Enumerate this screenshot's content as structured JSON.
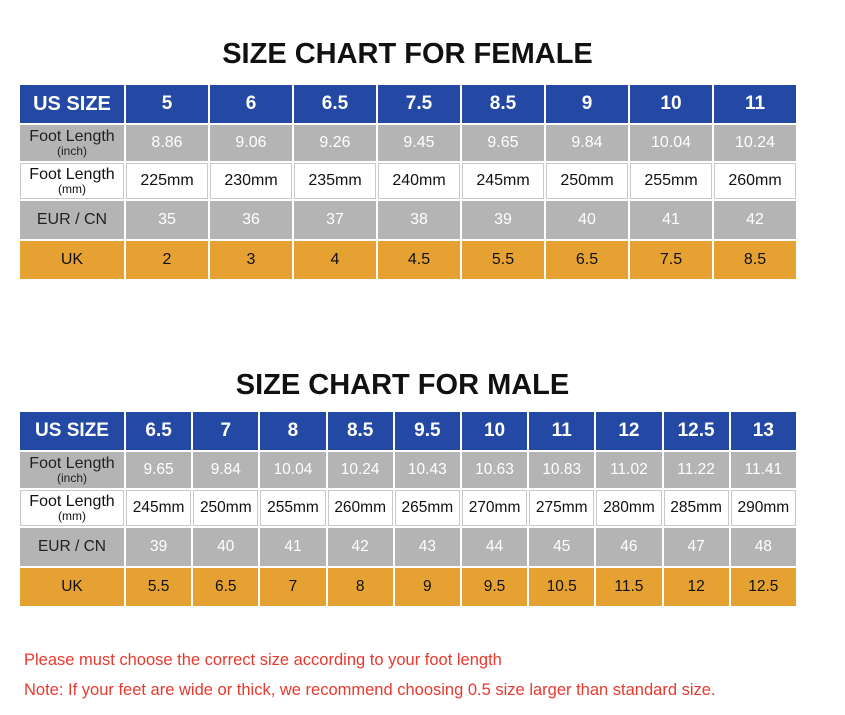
{
  "female": {
    "title": "SIZE CHART FOR FEMALE",
    "labels": {
      "us": "US SIZE",
      "foot_inch_main": "Foot Length",
      "foot_inch_sub": "(inch)",
      "foot_mm_main": "Foot Length",
      "foot_mm_sub": "(mm)",
      "eur": "EUR / CN",
      "uk": "UK"
    },
    "us": [
      "5",
      "6",
      "6.5",
      "7.5",
      "8.5",
      "9",
      "10",
      "11"
    ],
    "inch": [
      "8.86",
      "9.06",
      "9.26",
      "9.45",
      "9.65",
      "9.84",
      "10.04",
      "10.24"
    ],
    "mm": [
      "225mm",
      "230mm",
      "235mm",
      "240mm",
      "245mm",
      "250mm",
      "255mm",
      "260mm"
    ],
    "eur": [
      "35",
      "36",
      "37",
      "38",
      "39",
      "40",
      "41",
      "42"
    ],
    "uk": [
      "2",
      "3",
      "4",
      "4.5",
      "5.5",
      "6.5",
      "7.5",
      "8.5"
    ]
  },
  "male": {
    "title": "SIZE CHART FOR MALE",
    "labels": {
      "us": "US SIZE",
      "foot_inch_main": "Foot Length",
      "foot_inch_sub": "(inch)",
      "foot_mm_main": "Foot Length",
      "foot_mm_sub": "(mm)",
      "eur": "EUR / CN",
      "uk": "UK"
    },
    "us": [
      "6.5",
      "7",
      "8",
      "8.5",
      "9.5",
      "10",
      "11",
      "12",
      "12.5",
      "13"
    ],
    "inch": [
      "9.65",
      "9.84",
      "10.04",
      "10.24",
      "10.43",
      "10.63",
      "10.83",
      "11.02",
      "11.22",
      "11.41"
    ],
    "mm": [
      "245mm",
      "250mm",
      "255mm",
      "260mm",
      "265mm",
      "270mm",
      "275mm",
      "280mm",
      "285mm",
      "290mm"
    ],
    "eur": [
      "39",
      "40",
      "41",
      "42",
      "43",
      "44",
      "45",
      "46",
      "47",
      "48"
    ],
    "uk": [
      "5.5",
      "6.5",
      "7",
      "8",
      "9",
      "9.5",
      "10.5",
      "11.5",
      "12",
      "12.5"
    ]
  },
  "notes": {
    "line1": "Please must choose the correct size  according to your foot length",
    "line2": "Note: If your feet are wide or thick, we recommend choosing 0.5 size larger than standard size."
  },
  "colors": {
    "header_blue": "#2349a5",
    "gray": "#b4b4b4",
    "orange": "#e5a233",
    "note_red": "#e8392e"
  }
}
